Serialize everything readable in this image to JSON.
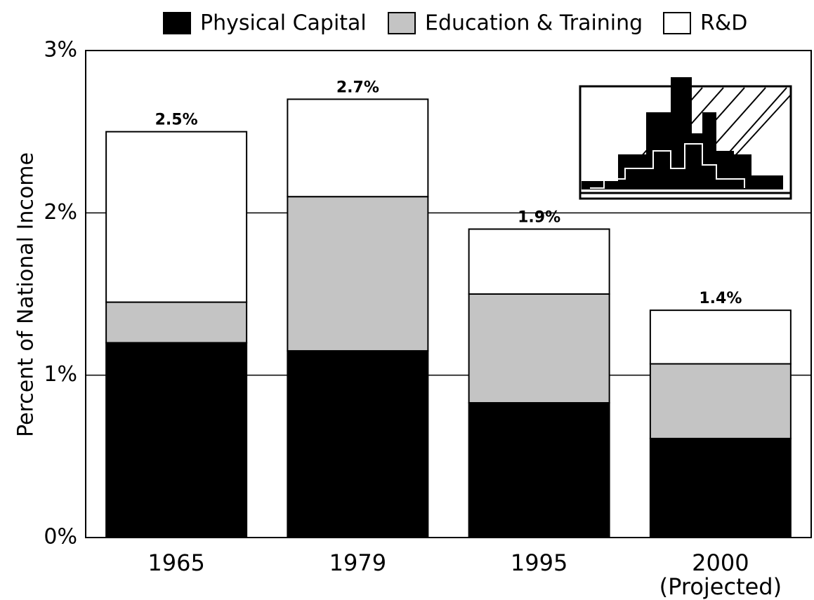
{
  "chart_data": {
    "type": "stacked_bar",
    "y_label": "Percent of National Income",
    "categories": [
      "1965",
      "1979",
      "1995",
      "2000"
    ],
    "annotations": [
      "(Projected)"
    ],
    "series": [
      {
        "name": "Physical Capital",
        "color": "#000000",
        "values": [
          1.2,
          1.15,
          0.83,
          0.61
        ]
      },
      {
        "name": "Education & Training",
        "color": "#c4c4c4",
        "values": [
          0.25,
          0.95,
          0.67,
          0.46
        ]
      },
      {
        "name": "R&D",
        "color": "#ffffff",
        "values": [
          1.05,
          0.6,
          0.4,
          0.33
        ]
      }
    ],
    "totals": [
      2.5,
      2.7,
      1.9,
      1.4
    ],
    "total_labels": [
      "2.5%",
      "2.7%",
      "1.9%",
      "1.4%"
    ],
    "ylim": [
      0,
      3
    ],
    "yticks": [
      {
        "value": 0,
        "label": "0%"
      },
      {
        "value": 1,
        "label": "1%"
      },
      {
        "value": 2,
        "label": "2%"
      },
      {
        "value": 3,
        "label": "3%"
      }
    ],
    "grid": true
  }
}
